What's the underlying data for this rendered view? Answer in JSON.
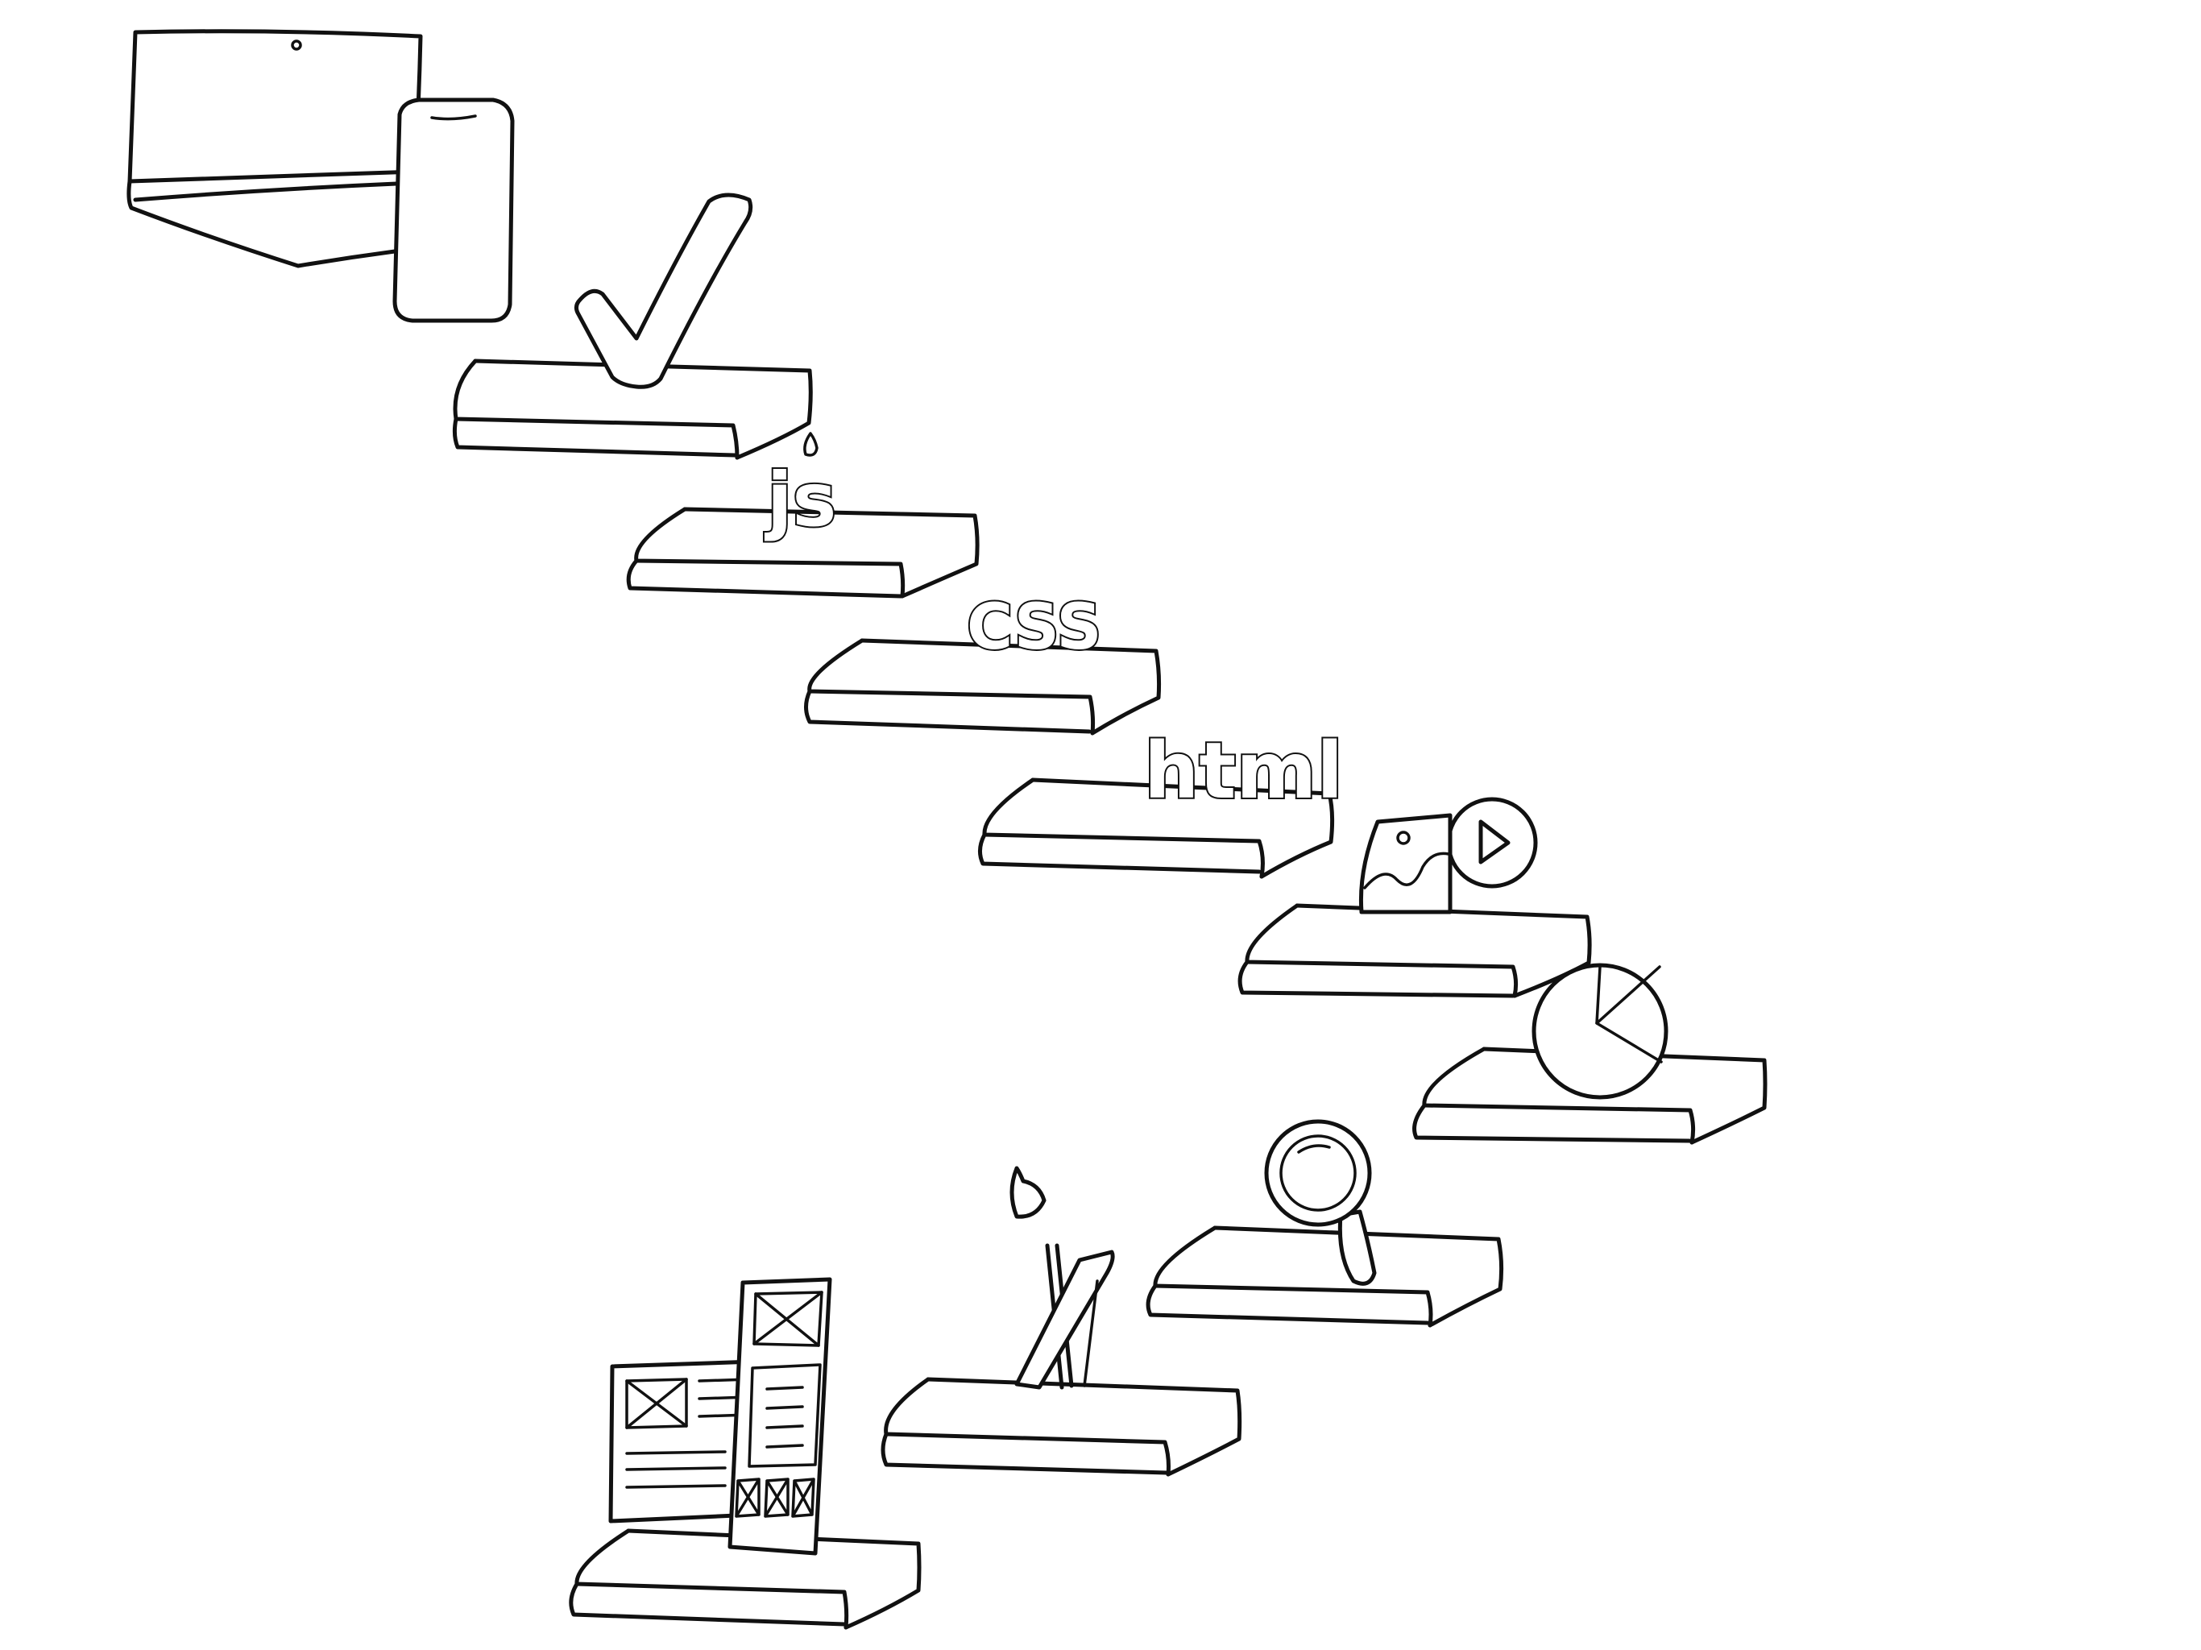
{
  "diagram": {
    "style": "hand-drawn line sketch, black on white",
    "steps": [
      {
        "order": 1,
        "icon": "wireframe-layout-icon"
      },
      {
        "order": 2,
        "icon": "pencil-brush-icon"
      },
      {
        "order": 3,
        "icon": "magnifier-icon"
      },
      {
        "order": 4,
        "icon": "pie-chart-icon"
      },
      {
        "order": 5,
        "icon": "image-play-media-icon"
      },
      {
        "order": 6,
        "icon": "html-icon",
        "label": "html"
      },
      {
        "order": 7,
        "icon": "css-icon",
        "label": "CSS"
      },
      {
        "order": 8,
        "icon": "js-icon",
        "label": "js"
      },
      {
        "order": 9,
        "icon": "checkmark-icon"
      }
    ],
    "top_icon": "laptop-and-phone-icon"
  },
  "colors": {
    "ink": "#111111",
    "background": "#ffffff"
  }
}
